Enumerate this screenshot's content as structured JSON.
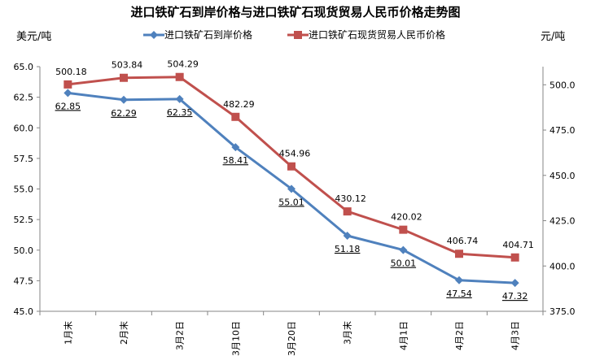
{
  "chart_data": {
    "type": "line",
    "title": "进口铁矿石到岸价格与进口铁矿石现货贸易人民币价格走势图",
    "left_axis": {
      "label": "美元/吨",
      "ylim": [
        45,
        65
      ],
      "ticks": [
        "45.0",
        "47.5",
        "50.0",
        "52.5",
        "55.0",
        "57.5",
        "60.0",
        "62.5",
        "65.0"
      ]
    },
    "right_axis": {
      "label": "元/吨",
      "ylim": [
        375,
        510
      ],
      "ticks": [
        "375.0",
        "400.0",
        "425.0",
        "450.0",
        "475.0",
        "500.0"
      ]
    },
    "categories": [
      "1月末",
      "2月末",
      "3月2日",
      "3月10日",
      "3月20日",
      "3月末",
      "4月1日",
      "4月2日",
      "4月3日"
    ],
    "series": [
      {
        "name": "进口铁矿石到岸价格",
        "axis": "left",
        "color": "#4F81BD",
        "marker": "diamond",
        "values": [
          62.85,
          62.29,
          62.35,
          58.41,
          55.01,
          51.18,
          50.01,
          47.54,
          47.32
        ],
        "labels": [
          "62.85",
          "62.29",
          "62.35",
          "58.41",
          "55.01",
          "51.18",
          "50.01",
          "47.54",
          "47.32"
        ]
      },
      {
        "name": "进口铁矿石现货贸易人民币价格",
        "axis": "right",
        "color": "#C0504D",
        "marker": "square",
        "values": [
          500.18,
          503.84,
          504.29,
          482.29,
          454.96,
          430.12,
          420.02,
          406.74,
          404.71
        ],
        "labels": [
          "500.18",
          "503.84",
          "504.29",
          "482.29",
          "454.96",
          "430.12",
          "420.02",
          "406.74",
          "404.71"
        ]
      }
    ],
    "grid": false,
    "legend": "top-center"
  }
}
